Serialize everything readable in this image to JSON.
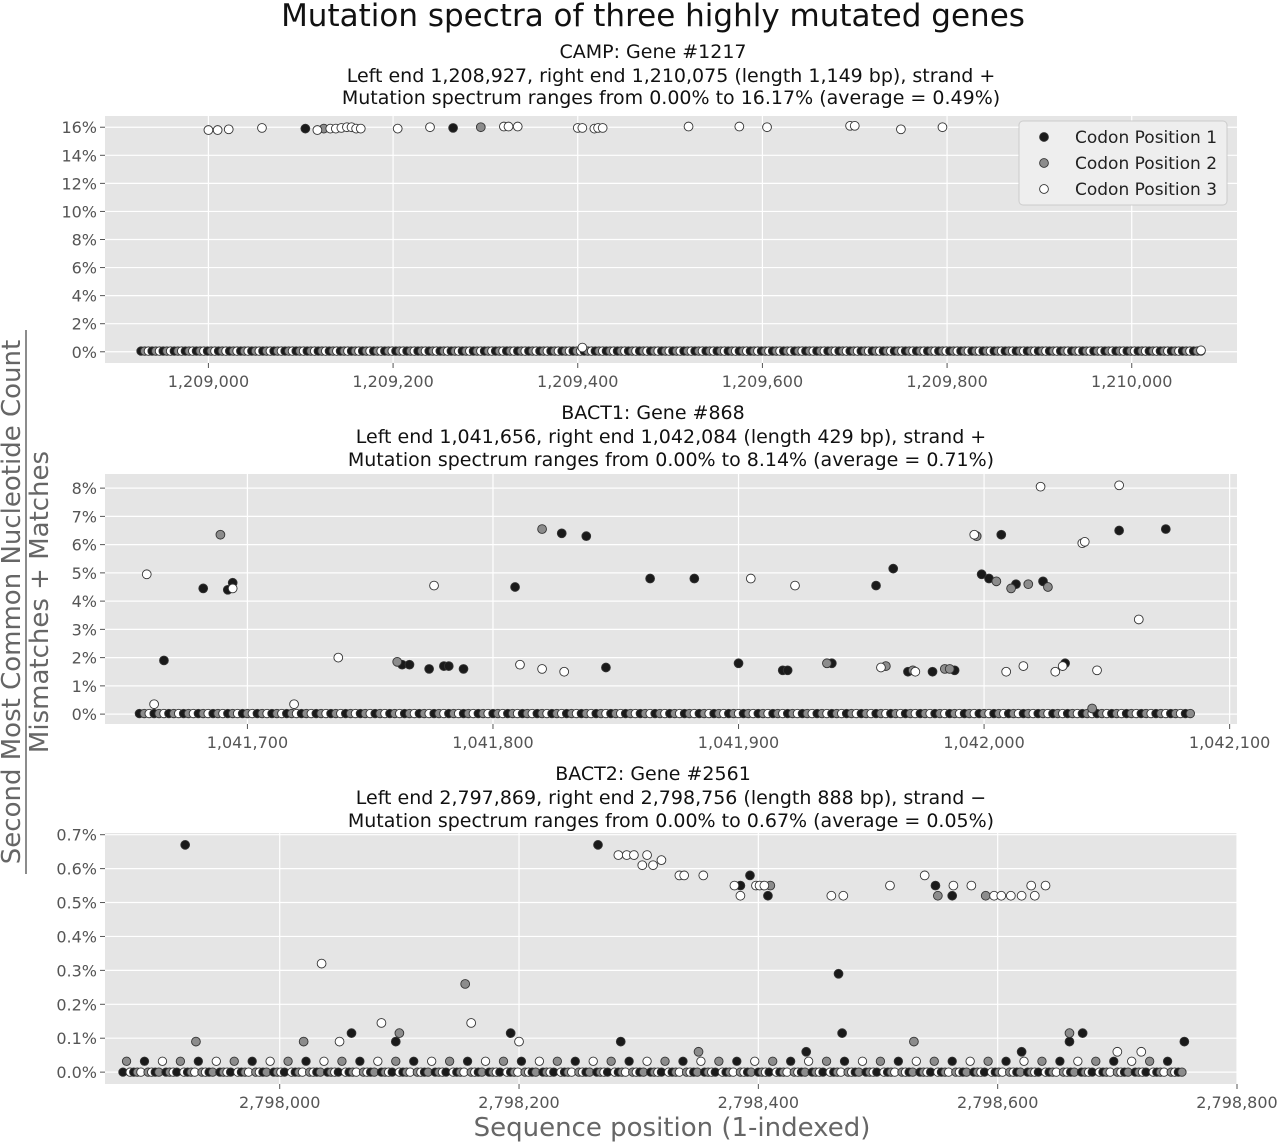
{
  "figure": {
    "title": "Mutation spectra of three highly mutated genes",
    "ylabel_numerator": "Second Most Common Nucleotide Count",
    "ylabel_denominator": "Mismatches + Matches",
    "xlabel": "Sequence position (1-indexed)"
  },
  "legend": {
    "placement": "top-right of first panel",
    "entries": [
      {
        "label": "Codon Position 1",
        "color": "#1a1a1a"
      },
      {
        "label": "Codon Position 2",
        "color": "#8c8c8c"
      },
      {
        "label": "Codon Position 3",
        "color": "#ffffff"
      }
    ]
  },
  "colors": {
    "plot_bg": "#e5e5e5",
    "grid": "#ffffff",
    "codon1": "#1a1a1a",
    "codon2": "#8c8c8c",
    "codon3": "#ffffff",
    "marker_edge": "#333333"
  },
  "chart_data": [
    {
      "type": "scatter",
      "title": "CAMP: Gene #1217",
      "subtitle1": "Left end 1,208,927, right end 1,210,075 (length 1,149 bp), strand +",
      "subtitle2": "Mutation spectrum ranges from 0.00% to 16.17% (average = 0.49%)",
      "xlim": [
        1208888,
        1210114
      ],
      "ylim": [
        -0.8,
        16.8
      ],
      "x_ticks": [
        1209000,
        1209200,
        1209400,
        1209600,
        1209800,
        1210000
      ],
      "x_tick_labels": [
        "1,209,000",
        "1,209,200",
        "1,209,400",
        "1,209,600",
        "1,209,800",
        "1,210,000"
      ],
      "y_ticks": [
        0,
        2,
        4,
        6,
        8,
        10,
        12,
        14,
        16
      ],
      "y_tick_labels": [
        "0%",
        "2%",
        "4%",
        "6%",
        "8%",
        "10%",
        "12%",
        "14%",
        "16%"
      ],
      "grid": true,
      "baseline": {
        "start": 1208927,
        "end": 1210075,
        "y": 0.05
      },
      "series": [
        {
          "name": "Codon Position 1",
          "codon": 1,
          "points": [
            [
              1209105,
              15.9
            ],
            [
              1209265,
              15.95
            ]
          ]
        },
        {
          "name": "Codon Position 2",
          "codon": 2,
          "points": [
            [
              1209125,
              15.9
            ],
            [
              1209295,
              16.0
            ]
          ]
        },
        {
          "name": "Codon Position 3",
          "codon": 3,
          "points": [
            [
              1209000,
              15.8
            ],
            [
              1209010,
              15.8
            ],
            [
              1209022,
              15.85
            ],
            [
              1209058,
              15.95
            ],
            [
              1209118,
              15.8
            ],
            [
              1209132,
              15.9
            ],
            [
              1209138,
              15.9
            ],
            [
              1209144,
              15.95
            ],
            [
              1209150,
              16.0
            ],
            [
              1209155,
              16.0
            ],
            [
              1209160,
              15.9
            ],
            [
              1209165,
              15.9
            ],
            [
              1209205,
              15.9
            ],
            [
              1209240,
              16.0
            ],
            [
              1209320,
              16.05
            ],
            [
              1209325,
              16.05
            ],
            [
              1209335,
              16.05
            ],
            [
              1209400,
              15.95
            ],
            [
              1209405,
              15.95
            ],
            [
              1209418,
              15.9
            ],
            [
              1209422,
              15.95
            ],
            [
              1209427,
              15.95
            ],
            [
              1209520,
              16.05
            ],
            [
              1209575,
              16.05
            ],
            [
              1209605,
              16.0
            ],
            [
              1209695,
              16.1
            ],
            [
              1209700,
              16.1
            ],
            [
              1209750,
              15.85
            ],
            [
              1209795,
              16.0
            ],
            [
              1209405,
              0.3
            ],
            [
              1210075,
              0.1
            ]
          ]
        }
      ]
    },
    {
      "type": "scatter",
      "title": "BACT1: Gene #868",
      "subtitle1": "Left end 1,041,656, right end 1,042,084 (length 429 bp), strand +",
      "subtitle2": "Mutation spectrum ranges from 0.00% to 8.14% (average = 0.71%)",
      "xlim": [
        1041642,
        1042103
      ],
      "ylim": [
        -0.35,
        8.5
      ],
      "x_ticks": [
        1041700,
        1041800,
        1041900,
        1042000,
        1042100
      ],
      "x_tick_labels": [
        "1,041,700",
        "1,041,800",
        "1,041,900",
        "1,042,000",
        "1,042,100"
      ],
      "y_ticks": [
        0,
        1,
        2,
        3,
        4,
        5,
        6,
        7,
        8
      ],
      "y_tick_labels": [
        "0%",
        "1%",
        "2%",
        "3%",
        "4%",
        "5%",
        "6%",
        "7%",
        "8%"
      ],
      "grid": true,
      "baseline": {
        "start": 1041656,
        "end": 1042084,
        "y": 0.02
      },
      "series": [
        {
          "name": "Codon Position 1",
          "codon": 1,
          "points": [
            [
              1041666,
              1.9
            ],
            [
              1041682,
              4.45
            ],
            [
              1041692,
              4.4
            ],
            [
              1041694,
              4.65
            ],
            [
              1041763,
              1.75
            ],
            [
              1041766,
              1.75
            ],
            [
              1041774,
              1.6
            ],
            [
              1041780,
              1.7
            ],
            [
              1041782,
              1.7
            ],
            [
              1041788,
              1.6
            ],
            [
              1041809,
              4.5
            ],
            [
              1041828,
              6.4
            ],
            [
              1041838,
              6.3
            ],
            [
              1041846,
              1.65
            ],
            [
              1041864,
              4.8
            ],
            [
              1041882,
              4.8
            ],
            [
              1041900,
              1.8
            ],
            [
              1041918,
              1.55
            ],
            [
              1041920,
              1.55
            ],
            [
              1041938,
              1.8
            ],
            [
              1041956,
              4.55
            ],
            [
              1041963,
              5.15
            ],
            [
              1041969,
              1.5
            ],
            [
              1041979,
              1.5
            ],
            [
              1041988,
              1.55
            ],
            [
              1041999,
              4.95
            ],
            [
              1042002,
              4.8
            ],
            [
              1042007,
              6.35
            ],
            [
              1042013,
              4.6
            ],
            [
              1042024,
              4.7
            ],
            [
              1042033,
              1.8
            ],
            [
              1042055,
              6.5
            ],
            [
              1042074,
              6.55
            ]
          ]
        },
        {
          "name": "Codon Position 2",
          "codon": 2,
          "points": [
            [
              1041689,
              6.35
            ],
            [
              1041761,
              1.85
            ],
            [
              1041820,
              6.55
            ],
            [
              1041936,
              1.8
            ],
            [
              1041960,
              1.7
            ],
            [
              1041971,
              1.55
            ],
            [
              1041984,
              1.6
            ],
            [
              1041986,
              1.6
            ],
            [
              1041997,
              6.3
            ],
            [
              1042005,
              4.7
            ],
            [
              1042011,
              4.45
            ],
            [
              1042018,
              4.6
            ],
            [
              1042026,
              4.5
            ],
            [
              1042044,
              0.2
            ]
          ]
        },
        {
          "name": "Codon Position 3",
          "codon": 3,
          "points": [
            [
              1041659,
              4.95
            ],
            [
              1041694,
              4.45
            ],
            [
              1041737,
              2.0
            ],
            [
              1041776,
              4.55
            ],
            [
              1041811,
              1.75
            ],
            [
              1041820,
              1.6
            ],
            [
              1041829,
              1.5
            ],
            [
              1041905,
              4.8
            ],
            [
              1041923,
              4.55
            ],
            [
              1041958,
              1.65
            ],
            [
              1041972,
              1.5
            ],
            [
              1041996,
              6.35
            ],
            [
              1042009,
              1.5
            ],
            [
              1042016,
              1.7
            ],
            [
              1042023,
              8.05
            ],
            [
              1042029,
              1.5
            ],
            [
              1042032,
              1.7
            ],
            [
              1042040,
              6.05
            ],
            [
              1042041,
              6.1
            ],
            [
              1042046,
              1.55
            ],
            [
              1042055,
              8.1
            ],
            [
              1042063,
              3.35
            ],
            [
              1041719,
              0.35
            ],
            [
              1041662,
              0.35
            ]
          ]
        }
      ]
    },
    {
      "type": "scatter",
      "title": "BACT2: Gene #2561",
      "subtitle1": "Left end 2,797,869, right end 2,798,756 (length 888 bp), strand −",
      "subtitle2": "Mutation spectrum ranges from 0.00% to 0.67% (average = 0.05%)",
      "xlim": [
        2797854,
        2798800
      ],
      "ylim": [
        -0.035,
        0.705
      ],
      "x_ticks": [
        2798000,
        2798200,
        2798400,
        2798600,
        2798800
      ],
      "x_tick_labels": [
        "2,798,000",
        "2,798,200",
        "2,798,400",
        "2,798,600",
        "2,798,800"
      ],
      "y_ticks": [
        0,
        0.1,
        0.2,
        0.3,
        0.4,
        0.5,
        0.6,
        0.7
      ],
      "y_tick_labels": [
        "0.0%",
        "0.1%",
        "0.2%",
        "0.3%",
        "0.4%",
        "0.5%",
        "0.6%",
        "0.7%"
      ],
      "grid": true,
      "baseline": {
        "start": 2797869,
        "end": 2798756,
        "y": 0.0
      },
      "series": [
        {
          "name": "Codon Position 1",
          "codon": 1,
          "points": [
            [
              2797921,
              0.67
            ],
            [
              2798266,
              0.67
            ],
            [
              2798393,
              0.58
            ],
            [
              2798385,
              0.55
            ],
            [
              2798408,
              0.52
            ],
            [
              2798467,
              0.29
            ],
            [
              2798470,
              0.115
            ],
            [
              2798548,
              0.55
            ],
            [
              2798562,
              0.52
            ],
            [
              2798060,
              0.115
            ],
            [
              2798097,
              0.09
            ],
            [
              2798193,
              0.115
            ],
            [
              2798285,
              0.09
            ],
            [
              2798660,
              0.09
            ],
            [
              2798671,
              0.115
            ],
            [
              2798756,
              0.09
            ],
            [
              2798440,
              0.06
            ],
            [
              2798620,
              0.06
            ]
          ]
        },
        {
          "name": "Codon Position 2",
          "codon": 2,
          "points": [
            [
              2798155,
              0.26
            ],
            [
              2798410,
              0.55
            ],
            [
              2798550,
              0.52
            ],
            [
              2798590,
              0.52
            ],
            [
              2797930,
              0.09
            ],
            [
              2798100,
              0.115
            ],
            [
              2798660,
              0.115
            ],
            [
              2798020,
              0.09
            ],
            [
              2798350,
              0.06
            ],
            [
              2798530,
              0.09
            ]
          ]
        },
        {
          "name": "Codon Position 3",
          "codon": 3,
          "points": [
            [
              2798035,
              0.32
            ],
            [
              2798160,
              0.145
            ],
            [
              2798085,
              0.145
            ],
            [
              2798283,
              0.64
            ],
            [
              2798290,
              0.64
            ],
            [
              2798296,
              0.64
            ],
            [
              2798303,
              0.61
            ],
            [
              2798307,
              0.64
            ],
            [
              2798312,
              0.61
            ],
            [
              2798319,
              0.625
            ],
            [
              2798334,
              0.58
            ],
            [
              2798338,
              0.58
            ],
            [
              2798354,
              0.58
            ],
            [
              2798380,
              0.55
            ],
            [
              2798385,
              0.52
            ],
            [
              2798398,
              0.55
            ],
            [
              2798401,
              0.55
            ],
            [
              2798405,
              0.55
            ],
            [
              2798461,
              0.52
            ],
            [
              2798471,
              0.52
            ],
            [
              2798510,
              0.55
            ],
            [
              2798539,
              0.58
            ],
            [
              2798563,
              0.55
            ],
            [
              2798578,
              0.55
            ],
            [
              2798597,
              0.52
            ],
            [
              2798603,
              0.52
            ],
            [
              2798611,
              0.52
            ],
            [
              2798620,
              0.52
            ],
            [
              2798628,
              0.55
            ],
            [
              2798631,
              0.52
            ],
            [
              2798640,
              0.55
            ],
            [
              2798050,
              0.09
            ],
            [
              2798200,
              0.09
            ],
            [
              2798700,
              0.06
            ],
            [
              2798720,
              0.06
            ]
          ]
        }
      ]
    }
  ]
}
